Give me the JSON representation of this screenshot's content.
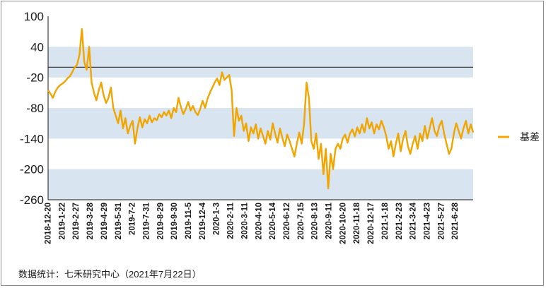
{
  "chart_data": {
    "type": "line",
    "title": "",
    "xlabel": "",
    "ylabel": "",
    "ylim": [
      -260,
      100
    ],
    "yticks": [
      100,
      40,
      -20,
      -80,
      -140,
      -200,
      -260
    ],
    "ytick_labels": [
      "100",
      "40",
      "-20",
      "-80",
      "-140",
      "-200",
      "-260"
    ],
    "bands": [
      [
        -20,
        40
      ],
      [
        -140,
        -80
      ],
      [
        -260,
        -200
      ]
    ],
    "reference_line": 0,
    "grid": false,
    "legend_position": "right",
    "x_tick_labels": [
      "2018-12-20",
      "2019-1-22",
      "2019-2-27",
      "2019-3-28",
      "2019-4-29",
      "2019-5-31",
      "2019-7-2",
      "2019-7-31",
      "2019-8-29",
      "2019-9-30",
      "2019-11-5",
      "2019-12-4",
      "2020-1-3",
      "2020-2-11",
      "2020-3-11",
      "2020-4-10",
      "2020-5-14",
      "2020-6-12",
      "2020-7-15",
      "2020-8-13",
      "2020-9-11",
      "2020-10-20",
      "2020-11-18",
      "2020-12-17",
      "2021-1-18",
      "2021-2-23",
      "2021-3-24",
      "2021-4-23",
      "2021-5-27",
      "2021-6-28"
    ],
    "series": [
      {
        "name": "基差",
        "color": "#f0a500",
        "values": [
          [
            0,
            -45
          ],
          [
            1,
            -52
          ],
          [
            2,
            -60
          ],
          [
            3,
            -48
          ],
          [
            4,
            -40
          ],
          [
            5,
            -35
          ],
          [
            6,
            -32
          ],
          [
            7,
            -28
          ],
          [
            8,
            -22
          ],
          [
            9,
            -18
          ],
          [
            10,
            -10
          ],
          [
            11,
            0
          ],
          [
            12,
            5
          ],
          [
            13,
            25
          ],
          [
            14,
            75
          ],
          [
            15,
            10
          ],
          [
            16,
            -5
          ],
          [
            17,
            40
          ],
          [
            18,
            -30
          ],
          [
            19,
            -50
          ],
          [
            20,
            -65
          ],
          [
            21,
            -45
          ],
          [
            22,
            -30
          ],
          [
            23,
            -55
          ],
          [
            24,
            -70
          ],
          [
            25,
            -60
          ],
          [
            26,
            -40
          ],
          [
            27,
            -80
          ],
          [
            28,
            -95
          ],
          [
            29,
            -110
          ],
          [
            30,
            -85
          ],
          [
            31,
            -120
          ],
          [
            32,
            -100
          ],
          [
            33,
            -130
          ],
          [
            34,
            -115
          ],
          [
            35,
            -105
          ],
          [
            36,
            -150
          ],
          [
            37,
            -120
          ],
          [
            38,
            -98
          ],
          [
            39,
            -118
          ],
          [
            40,
            -102
          ],
          [
            41,
            -110
          ],
          [
            42,
            -95
          ],
          [
            43,
            -108
          ],
          [
            44,
            -100
          ],
          [
            45,
            -104
          ],
          [
            46,
            -92
          ],
          [
            47,
            -98
          ],
          [
            48,
            -88
          ],
          [
            49,
            -95
          ],
          [
            50,
            -85
          ],
          [
            51,
            -100
          ],
          [
            52,
            -80
          ],
          [
            53,
            -88
          ],
          [
            54,
            -60
          ],
          [
            55,
            -78
          ],
          [
            56,
            -92
          ],
          [
            57,
            -82
          ],
          [
            58,
            -68
          ],
          [
            59,
            -85
          ],
          [
            60,
            -76
          ],
          [
            61,
            -88
          ],
          [
            62,
            -94
          ],
          [
            63,
            -82
          ],
          [
            64,
            -66
          ],
          [
            65,
            -80
          ],
          [
            66,
            -62
          ],
          [
            67,
            -50
          ],
          [
            68,
            -40
          ],
          [
            69,
            -30
          ],
          [
            70,
            -22
          ],
          [
            71,
            -35
          ],
          [
            72,
            -10
          ],
          [
            73,
            -25
          ],
          [
            74,
            -20
          ],
          [
            75,
            -15
          ],
          [
            76,
            -45
          ],
          [
            77,
            -135
          ],
          [
            78,
            -80
          ],
          [
            79,
            -105
          ],
          [
            80,
            -95
          ],
          [
            81,
            -125
          ],
          [
            82,
            -110
          ],
          [
            83,
            -145
          ],
          [
            84,
            -118
          ],
          [
            85,
            -130
          ],
          [
            86,
            -112
          ],
          [
            87,
            -140
          ],
          [
            88,
            -120
          ],
          [
            89,
            -135
          ],
          [
            90,
            -150
          ],
          [
            91,
            -125
          ],
          [
            92,
            -142
          ],
          [
            93,
            -110
          ],
          [
            94,
            -130
          ],
          [
            95,
            -148
          ],
          [
            96,
            -120
          ],
          [
            97,
            -138
          ],
          [
            98,
            -155
          ],
          [
            99,
            -132
          ],
          [
            100,
            -145
          ],
          [
            101,
            -160
          ],
          [
            102,
            -175
          ],
          [
            103,
            -150
          ],
          [
            104,
            -128
          ],
          [
            105,
            -150
          ],
          [
            106,
            -110
          ],
          [
            107,
            -30
          ],
          [
            108,
            -60
          ],
          [
            109,
            -145
          ],
          [
            110,
            -160
          ],
          [
            111,
            -130
          ],
          [
            112,
            -180
          ],
          [
            113,
            -150
          ],
          [
            114,
            -210
          ],
          [
            115,
            -160
          ],
          [
            116,
            -238
          ],
          [
            117,
            -170
          ],
          [
            118,
            -200
          ],
          [
            119,
            -160
          ],
          [
            120,
            -150
          ],
          [
            121,
            -160
          ],
          [
            122,
            -140
          ],
          [
            123,
            -132
          ],
          [
            124,
            -148
          ],
          [
            125,
            -130
          ],
          [
            126,
            -122
          ],
          [
            127,
            -136
          ],
          [
            128,
            -118
          ],
          [
            129,
            -130
          ],
          [
            130,
            -112
          ],
          [
            131,
            -128
          ],
          [
            132,
            -100
          ],
          [
            133,
            -120
          ],
          [
            134,
            -108
          ],
          [
            135,
            -130
          ],
          [
            136,
            -112
          ],
          [
            137,
            -122
          ],
          [
            138,
            -105
          ],
          [
            139,
            -118
          ],
          [
            140,
            -135
          ],
          [
            141,
            -160
          ],
          [
            142,
            -145
          ],
          [
            143,
            -175
          ],
          [
            144,
            -150
          ],
          [
            145,
            -130
          ],
          [
            146,
            -165
          ],
          [
            147,
            -140
          ],
          [
            148,
            -125
          ],
          [
            149,
            -155
          ],
          [
            150,
            -170
          ],
          [
            151,
            -150
          ],
          [
            152,
            -135
          ],
          [
            153,
            -160
          ],
          [
            154,
            -130
          ],
          [
            155,
            -145
          ],
          [
            156,
            -115
          ],
          [
            157,
            -140
          ],
          [
            158,
            -120
          ],
          [
            159,
            -100
          ],
          [
            160,
            -125
          ],
          [
            161,
            -135
          ],
          [
            162,
            -115
          ],
          [
            163,
            -105
          ],
          [
            164,
            -130
          ],
          [
            165,
            -150
          ],
          [
            166,
            -170
          ],
          [
            167,
            -160
          ],
          [
            168,
            -130
          ],
          [
            169,
            -110
          ],
          [
            170,
            -125
          ],
          [
            171,
            -140
          ],
          [
            172,
            -120
          ],
          [
            173,
            -105
          ],
          [
            174,
            -130
          ],
          [
            175,
            -112
          ],
          [
            176,
            -128
          ]
        ]
      }
    ]
  },
  "legend": {
    "label": "基差"
  },
  "footer": {
    "source": "数据统计：七禾研究中心（2021年7月22日）"
  }
}
